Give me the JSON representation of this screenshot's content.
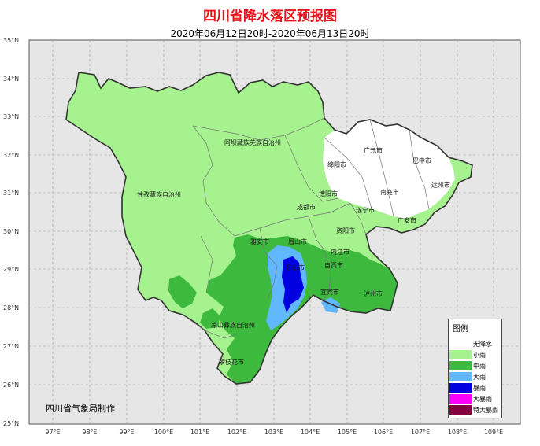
{
  "map": {
    "title": "四川省降水落区预报图",
    "subtitle": "2020年06月12日20时-2020年06月13日20时",
    "credit": "四川省气象局制作",
    "lat_labels": [
      "35°N",
      "34°N",
      "33°N",
      "32°N",
      "31°N",
      "30°N",
      "29°N",
      "28°N",
      "27°N",
      "26°N",
      "25°N"
    ],
    "lon_labels": [
      "97°E",
      "98°E",
      "99°E",
      "100°E",
      "101°E",
      "102°E",
      "103°E",
      "104°E",
      "105°E",
      "106°E",
      "107°E",
      "108°E",
      "109°E"
    ],
    "regions": {
      "aba": "阿坝藏族羌族自治州",
      "ganzi": "甘孜藏族自治州",
      "liangshan": "凉山彝族自治州"
    },
    "cities": {
      "guangyuan": "广元市",
      "bazhong": "巴中市",
      "mianyang": "绵阳市",
      "dazhou": "达州市",
      "deyang": "德阳市",
      "nanchong": "南充市",
      "chengdu": "成都市",
      "suining": "遂宁市",
      "guang_an": "广安市",
      "ziyang": "资阳市",
      "ya_an": "雅安市",
      "meishan": "眉山市",
      "neijiang": "内江市",
      "leshan": "乐山市",
      "zigong": "自贡市",
      "yibin": "宜宾市",
      "luzhou": "泸州市",
      "panzhihua": "攀枝花市"
    },
    "colors": {
      "no_rain": "#ffffff",
      "light": "#a6f28f",
      "moderate": "#3dba3d",
      "heavy": "#61b8ff",
      "storm": "#0000e1",
      "big_storm": "#fa00fa",
      "extreme": "#800040",
      "background": "#e6e6e6",
      "border": "#333333"
    }
  },
  "legend": {
    "title": "图例",
    "items": [
      {
        "label": "无降水",
        "color": "#ffffff"
      },
      {
        "label": "小雨",
        "color": "#a6f28f"
      },
      {
        "label": "中雨",
        "color": "#3dba3d"
      },
      {
        "label": "大雨",
        "color": "#61b8ff"
      },
      {
        "label": "暴雨",
        "color": "#0000e1"
      },
      {
        "label": "大暴雨",
        "color": "#fa00fa"
      },
      {
        "label": "特大暴雨",
        "color": "#800040"
      }
    ]
  }
}
